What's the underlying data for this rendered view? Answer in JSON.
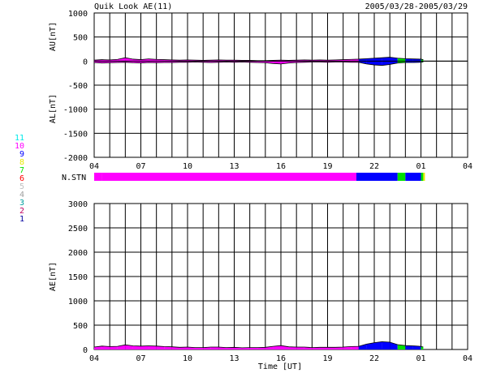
{
  "header": {
    "title": "Quik Look AE(11)",
    "date_range": "2005/03/28-2005/03/29"
  },
  "chart_data": [
    {
      "panel": "AU/AL",
      "type": "area",
      "ylabel_upper": "AU[nT]",
      "ylabel_lower": "AL[nT]",
      "ylim": [
        -2000,
        1000
      ],
      "yticks": [
        1000,
        500,
        0,
        -500,
        -1000,
        -1500,
        -2000
      ],
      "xlim": [
        4,
        28
      ],
      "xticks": [
        "04",
        "07",
        "10",
        "13",
        "16",
        "19",
        "22",
        "01",
        "04"
      ],
      "grid": true,
      "data_end_hour": 25.15,
      "station_color_spans": [
        {
          "start": 4,
          "end": 4.5,
          "station_count": 10
        },
        {
          "start": 4.5,
          "end": 20.85,
          "station_count": 10
        },
        {
          "start": 20.85,
          "end": 23.5,
          "station_count": 9
        },
        {
          "start": 23.5,
          "end": 24.0,
          "station_count": 7
        },
        {
          "start": 24.0,
          "end": 25.0,
          "station_count": 9
        },
        {
          "start": 25.0,
          "end": 25.15,
          "station_count": 7
        }
      ],
      "series": [
        {
          "name": "AU",
          "x": [
            4,
            4.5,
            5,
            5.5,
            6,
            6.5,
            7,
            7.5,
            8,
            8.5,
            9,
            9.5,
            10,
            10.5,
            11,
            11.5,
            12,
            12.5,
            13,
            13.5,
            14,
            14.5,
            15,
            15.5,
            16,
            16.5,
            17,
            17.5,
            18,
            18.5,
            19,
            19.5,
            20,
            20.5,
            21,
            21.5,
            22,
            22.5,
            23,
            23.5,
            24,
            24.5,
            25,
            25.15
          ],
          "values": [
            20,
            30,
            25,
            35,
            70,
            40,
            30,
            45,
            35,
            30,
            25,
            20,
            25,
            20,
            15,
            20,
            25,
            20,
            20,
            15,
            15,
            10,
            10,
            15,
            20,
            15,
            20,
            25,
            20,
            25,
            20,
            25,
            30,
            35,
            40,
            50,
            60,
            70,
            80,
            60,
            50,
            45,
            40,
            30
          ]
        },
        {
          "name": "AL",
          "x": [
            4,
            4.5,
            5,
            5.5,
            6,
            6.5,
            7,
            7.5,
            8,
            8.5,
            9,
            9.5,
            10,
            10.5,
            11,
            11.5,
            12,
            12.5,
            13,
            13.5,
            14,
            14.5,
            15,
            15.5,
            16,
            16.5,
            17,
            17.5,
            18,
            18.5,
            19,
            19.5,
            20,
            20.5,
            21,
            21.5,
            22,
            22.5,
            23,
            23.5,
            24,
            24.5,
            25,
            25.15
          ],
          "values": [
            -30,
            -40,
            -35,
            -30,
            -25,
            -35,
            -40,
            -30,
            -35,
            -30,
            -30,
            -25,
            -25,
            -20,
            -25,
            -30,
            -25,
            -20,
            -25,
            -20,
            -25,
            -30,
            -35,
            -50,
            -60,
            -40,
            -30,
            -25,
            -20,
            -20,
            -25,
            -20,
            -20,
            -25,
            -25,
            -60,
            -80,
            -90,
            -70,
            -40,
            -30,
            -30,
            -25,
            -20
          ]
        }
      ]
    },
    {
      "panel": "N.STN",
      "type": "bar",
      "label": "N.STN",
      "legend_counts": [
        "11",
        "10",
        "9",
        "8",
        "7",
        "6",
        "5",
        "4",
        "3",
        "2",
        "1"
      ]
    },
    {
      "panel": "AE",
      "type": "area",
      "ylabel": "AE[nT]",
      "xlabel": "Time [UT]",
      "ylim": [
        0,
        3000
      ],
      "yticks": [
        3000,
        2500,
        2000,
        1500,
        1000,
        500,
        0
      ],
      "xlim": [
        4,
        28
      ],
      "xticks": [
        "04",
        "07",
        "10",
        "13",
        "16",
        "19",
        "22",
        "01",
        "04"
      ],
      "grid": true,
      "series": [
        {
          "name": "AE",
          "x": [
            4,
            4.5,
            5,
            5.5,
            6,
            6.5,
            7,
            7.5,
            8,
            8.5,
            9,
            9.5,
            10,
            10.5,
            11,
            11.5,
            12,
            12.5,
            13,
            13.5,
            14,
            14.5,
            15,
            15.5,
            16,
            16.5,
            17,
            17.5,
            18,
            18.5,
            19,
            19.5,
            20,
            20.5,
            21,
            21.5,
            22,
            22.5,
            23,
            23.5,
            24,
            24.5,
            25,
            25.15
          ],
          "values": [
            50,
            70,
            60,
            65,
            95,
            75,
            70,
            75,
            70,
            60,
            55,
            45,
            50,
            40,
            40,
            50,
            50,
            40,
            45,
            35,
            40,
            40,
            45,
            65,
            80,
            55,
            50,
            50,
            40,
            45,
            45,
            45,
            50,
            60,
            65,
            110,
            140,
            160,
            150,
            100,
            80,
            75,
            65,
            50
          ]
        }
      ]
    }
  ],
  "colors": {
    "station_count_colors": {
      "11": "#00e8e8",
      "10": "#ff00ff",
      "9": "#0000ff",
      "8": "#e8e800",
      "7": "#00e000",
      "6": "#ff0000",
      "5": "#c0c0c0",
      "4": "#a0a0a0",
      "3": "#00a0a0",
      "2": "#c00060",
      "1": "#0000a0"
    },
    "grid": "#000000",
    "axis": "#000000",
    "background": "#ffffff"
  }
}
